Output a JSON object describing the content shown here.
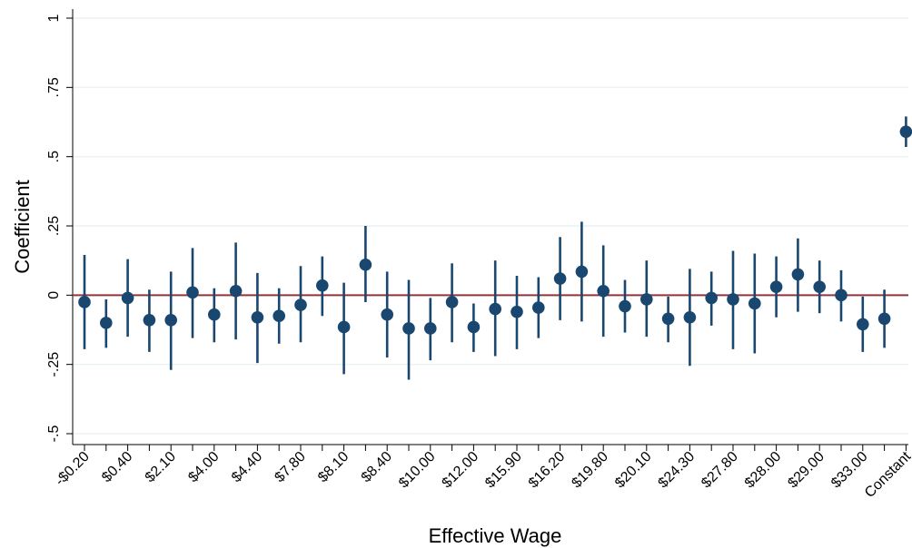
{
  "chart_data": {
    "type": "scatter",
    "title": "",
    "xlabel": "Effective Wage",
    "ylabel": "Coefficient",
    "ylim": [
      -0.5,
      1
    ],
    "yticks": [
      -0.5,
      -0.25,
      0,
      0.25,
      0.5,
      0.75,
      1
    ],
    "ytick_labels": [
      "-.5",
      "-.25",
      "0",
      ".25",
      ".5",
      ".75",
      "1"
    ],
    "grid": true,
    "reference_line": 0,
    "colors": {
      "points": "#1a476f",
      "reference": "#90353b",
      "grid": "#eaf2f3"
    },
    "categories": [
      "-$0.20",
      "",
      "$0.40",
      "",
      "$2.10",
      "",
      "$4.00",
      "",
      "$4.40",
      "",
      "$7.80",
      "",
      "$8.10",
      "",
      "$8.40",
      "",
      "$10.00",
      "",
      "$12.00",
      "",
      "$15.90",
      "",
      "$16.20",
      "",
      "$19.80",
      "",
      "$20.10",
      "",
      "$24.30",
      "",
      "$27.80",
      "",
      "$28.00",
      "",
      "$29.00",
      "",
      "$33.00",
      "",
      "Constant"
    ],
    "coef": [
      -0.025,
      -0.1,
      -0.01,
      -0.09,
      -0.09,
      0.01,
      -0.07,
      0.015,
      -0.08,
      -0.075,
      -0.035,
      0.035,
      -0.115,
      0.11,
      -0.07,
      -0.12,
      -0.12,
      -0.025,
      -0.115,
      -0.05,
      -0.06,
      -0.045,
      0.06,
      0.085,
      0.015,
      -0.04,
      -0.015,
      -0.085,
      -0.08,
      -0.01,
      -0.015,
      -0.03,
      0.03,
      0.075,
      0.03,
      0.0,
      -0.105,
      -0.085,
      0.59
    ],
    "ci_low": [
      -0.195,
      -0.19,
      -0.15,
      -0.205,
      -0.27,
      -0.155,
      -0.17,
      -0.16,
      -0.245,
      -0.175,
      -0.17,
      -0.075,
      -0.285,
      -0.025,
      -0.225,
      -0.305,
      -0.235,
      -0.17,
      -0.205,
      -0.22,
      -0.195,
      -0.155,
      -0.09,
      -0.095,
      -0.15,
      -0.135,
      -0.15,
      -0.17,
      -0.255,
      -0.11,
      -0.195,
      -0.21,
      -0.08,
      -0.06,
      -0.065,
      -0.095,
      -0.205,
      -0.19,
      0.535
    ],
    "ci_high": [
      0.145,
      -0.015,
      0.13,
      0.02,
      0.085,
      0.17,
      0.025,
      0.19,
      0.08,
      0.025,
      0.105,
      0.14,
      0.045,
      0.25,
      0.085,
      0.055,
      -0.01,
      0.115,
      -0.03,
      0.125,
      0.07,
      0.065,
      0.21,
      0.265,
      0.18,
      0.055,
      0.125,
      -0.005,
      0.095,
      0.085,
      0.16,
      0.15,
      0.14,
      0.205,
      0.125,
      0.09,
      -0.005,
      0.02,
      0.645
    ]
  }
}
